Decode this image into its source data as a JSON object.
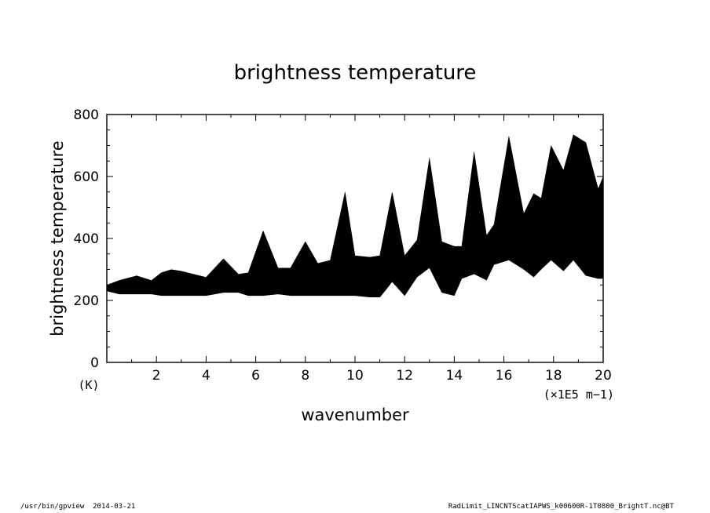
{
  "chart_data": {
    "type": "line",
    "title": "brightness temperature",
    "xlabel": "wavenumber",
    "ylabel": "brightness temperature",
    "x_unit": "(×1E5 m−1)",
    "y_unit": "(K)",
    "xlim": [
      0,
      20
    ],
    "ylim": [
      0,
      800
    ],
    "x_ticks": [
      2,
      4,
      6,
      8,
      10,
      12,
      14,
      16,
      18,
      20
    ],
    "x_tick_labels": [
      "2",
      "4",
      "6",
      "8",
      "10",
      "12",
      "14",
      "16",
      "18",
      "20"
    ],
    "y_ticks": [
      0,
      200,
      400,
      600,
      800
    ],
    "y_tick_labels": [
      "0",
      "200",
      "400",
      "600",
      "800"
    ],
    "grid": false,
    "series": [
      {
        "x": [
          0,
          0.5,
          1.2,
          1.8,
          2.2,
          2.6,
          3.0,
          3.5,
          4.0,
          4.7,
          5.3,
          5.7,
          6.3,
          6.9,
          7.4,
          8.0,
          8.5,
          9.0,
          9.6,
          10.0,
          10.6,
          11.0,
          11.5,
          12.0,
          12.5,
          13.0,
          13.5,
          14.0,
          14.3,
          14.8,
          15.3,
          15.6,
          16.2,
          16.8,
          17.2,
          17.5,
          17.9,
          18.4,
          18.8,
          19.3,
          19.8,
          20
        ],
        "y_max": [
          250,
          265,
          280,
          265,
          290,
          300,
          295,
          285,
          275,
          335,
          285,
          290,
          425,
          305,
          305,
          390,
          320,
          330,
          550,
          345,
          340,
          345,
          550,
          345,
          395,
          660,
          390,
          375,
          375,
          680,
          410,
          445,
          730,
          480,
          545,
          530,
          700,
          620,
          735,
          710,
          560,
          600
        ],
        "y_min": [
          230,
          220,
          220,
          220,
          215,
          215,
          215,
          215,
          215,
          225,
          225,
          215,
          215,
          220,
          215,
          215,
          215,
          215,
          215,
          215,
          210,
          210,
          260,
          215,
          275,
          305,
          225,
          215,
          270,
          285,
          265,
          315,
          330,
          300,
          275,
          300,
          330,
          295,
          330,
          280,
          270,
          270
        ]
      }
    ]
  },
  "footer": {
    "left": "/usr/bin/gpview  2014-03-21",
    "right": "RadLimit_LINCNTScatIAPWS_k00600R-1T0800_BrightT.nc@BT"
  }
}
